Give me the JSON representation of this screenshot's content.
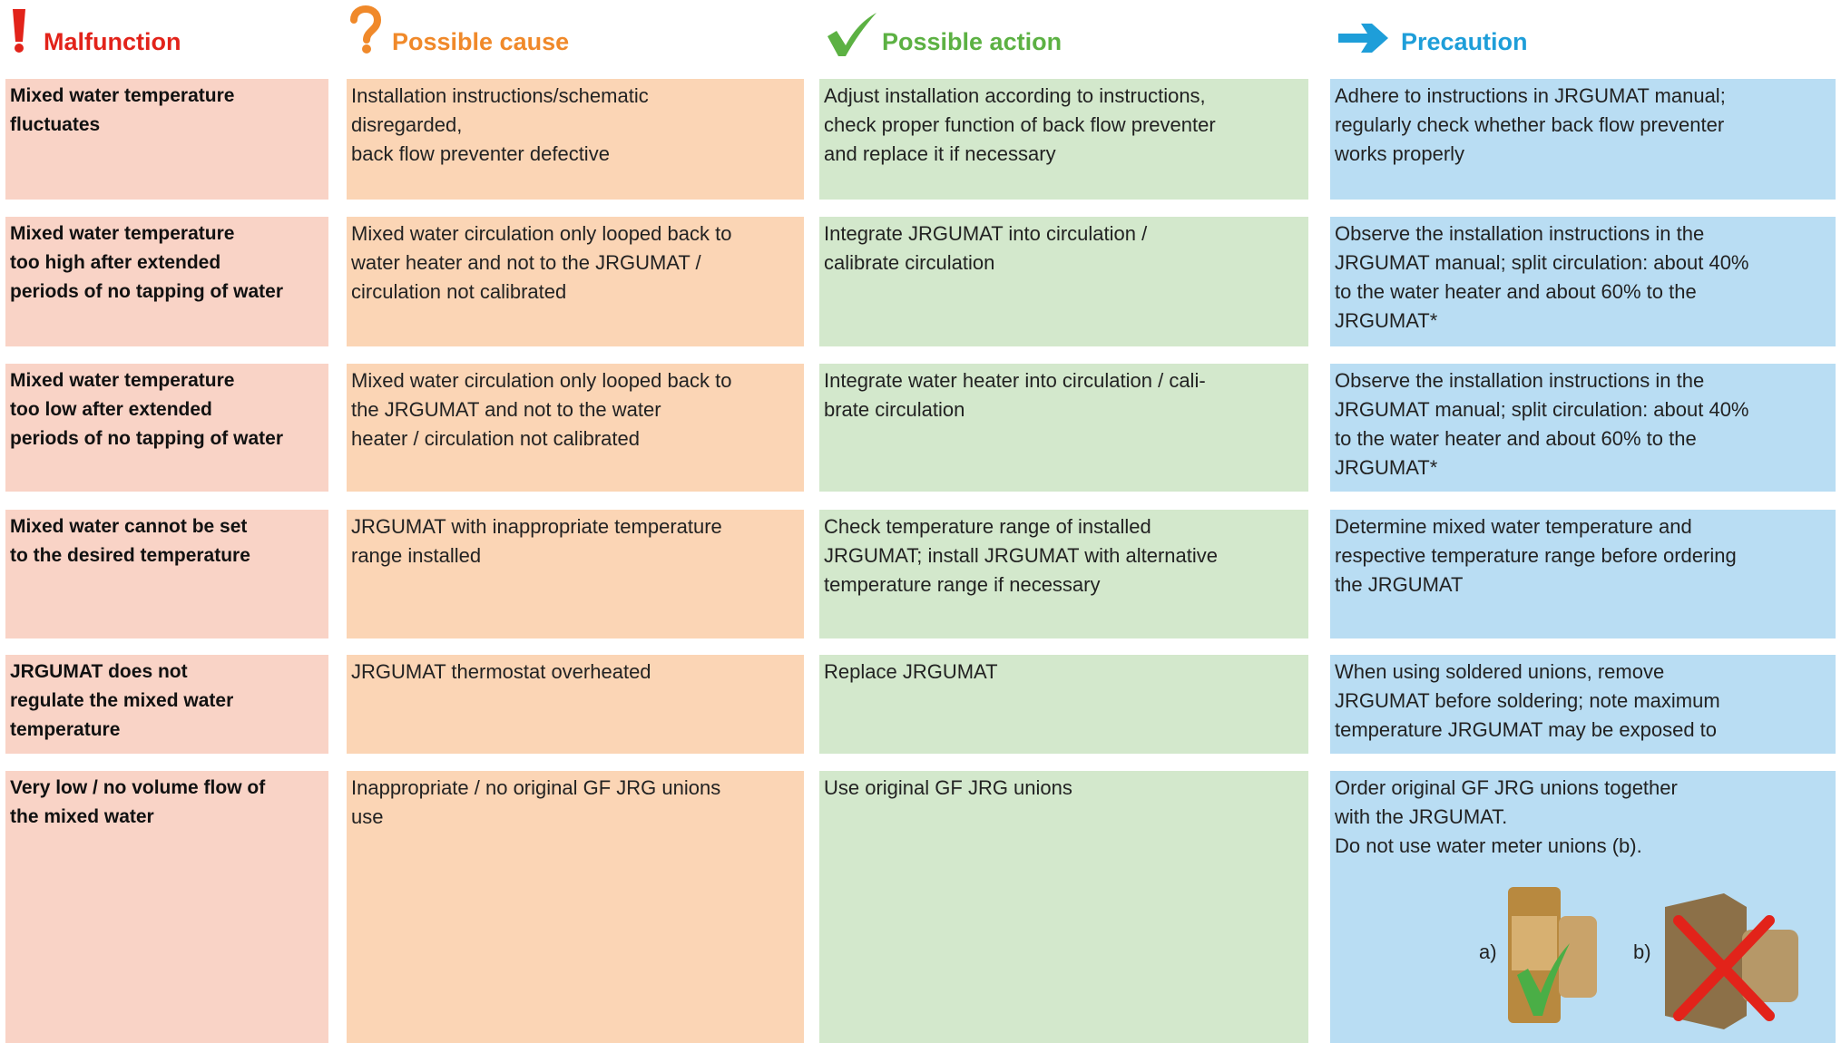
{
  "header": {
    "columns": [
      "Malfunction",
      "Possible cause",
      "Possible action",
      "Precaution"
    ]
  },
  "rows": [
    {
      "cells": [
        [
          "Mixed water temperature",
          "fluctuates"
        ],
        [
          "Installation instructions/schematic",
          "disregarded,",
          "back flow preventer defective"
        ],
        [
          "Adjust installation according to instructions,",
          "check proper function of back flow preventer",
          "and replace it if necessary"
        ],
        [
          "Adhere to instructions in JRGUMAT manual;",
          "regularly check whether back flow preventer",
          "works properly"
        ]
      ]
    },
    {
      "cells": [
        [
          "Mixed water temperature",
          "too high after extended",
          "periods of no tapping of water"
        ],
        [
          "Mixed water circulation only looped back to",
          "water heater and not to the JRGUMAT /",
          "circulation not calibrated"
        ],
        [
          "Integrate JRGUMAT into circulation /",
          "calibrate circulation"
        ],
        [
          "Observe the installation instructions in the",
          "JRGUMAT manual; split circulation: about 40%",
          "to the water heater and about 60% to the",
          "JRGUMAT*"
        ]
      ]
    },
    {
      "cells": [
        [
          "Mixed water temperature",
          "too low after extended",
          "periods of no tapping of water"
        ],
        [
          "Mixed water circulation only looped back to",
          "the JRGUMAT and not to the water",
          "heater / circulation not calibrated"
        ],
        [
          "Integrate water heater into circulation / cali-",
          "brate circulation"
        ],
        [
          "Observe the installation instructions in the",
          "JRGUMAT manual; split circulation: about 40%",
          "to the water heater and about 60% to the",
          "JRGUMAT*"
        ]
      ]
    },
    {
      "cells": [
        [
          "Mixed water cannot be set",
          "to the desired temperature"
        ],
        [
          "JRGUMAT with inappropriate temperature",
          "range installed"
        ],
        [
          "Check temperature range of installed",
          "JRGUMAT; install JRGUMAT with alternative",
          "temperature range if necessary"
        ],
        [
          "Determine mixed water temperature and",
          "respective temperature range before ordering",
          "the JRGUMAT"
        ]
      ]
    },
    {
      "cells": [
        [
          "JRGUMAT does not",
          "regulate the mixed water",
          "temperature"
        ],
        [
          "JRGUMAT thermostat overheated"
        ],
        [
          "Replace JRGUMAT"
        ],
        [
          "When using soldered unions, remove",
          "JRGUMAT before soldering; note maximum",
          "temperature JRGUMAT may be exposed to"
        ]
      ]
    },
    {
      "cells": [
        [
          "Very low / no volume flow of",
          "the mixed water"
        ],
        [
          "Inappropriate / no original GF JRG unions",
          "use"
        ],
        [
          "Use original GF JRG unions"
        ],
        [
          "Order original GF JRG unions together",
          "with the JRGUMAT.",
          "Do not use water meter unions (b)."
        ]
      ]
    }
  ],
  "images": [
    "a)",
    "b)"
  ]
}
